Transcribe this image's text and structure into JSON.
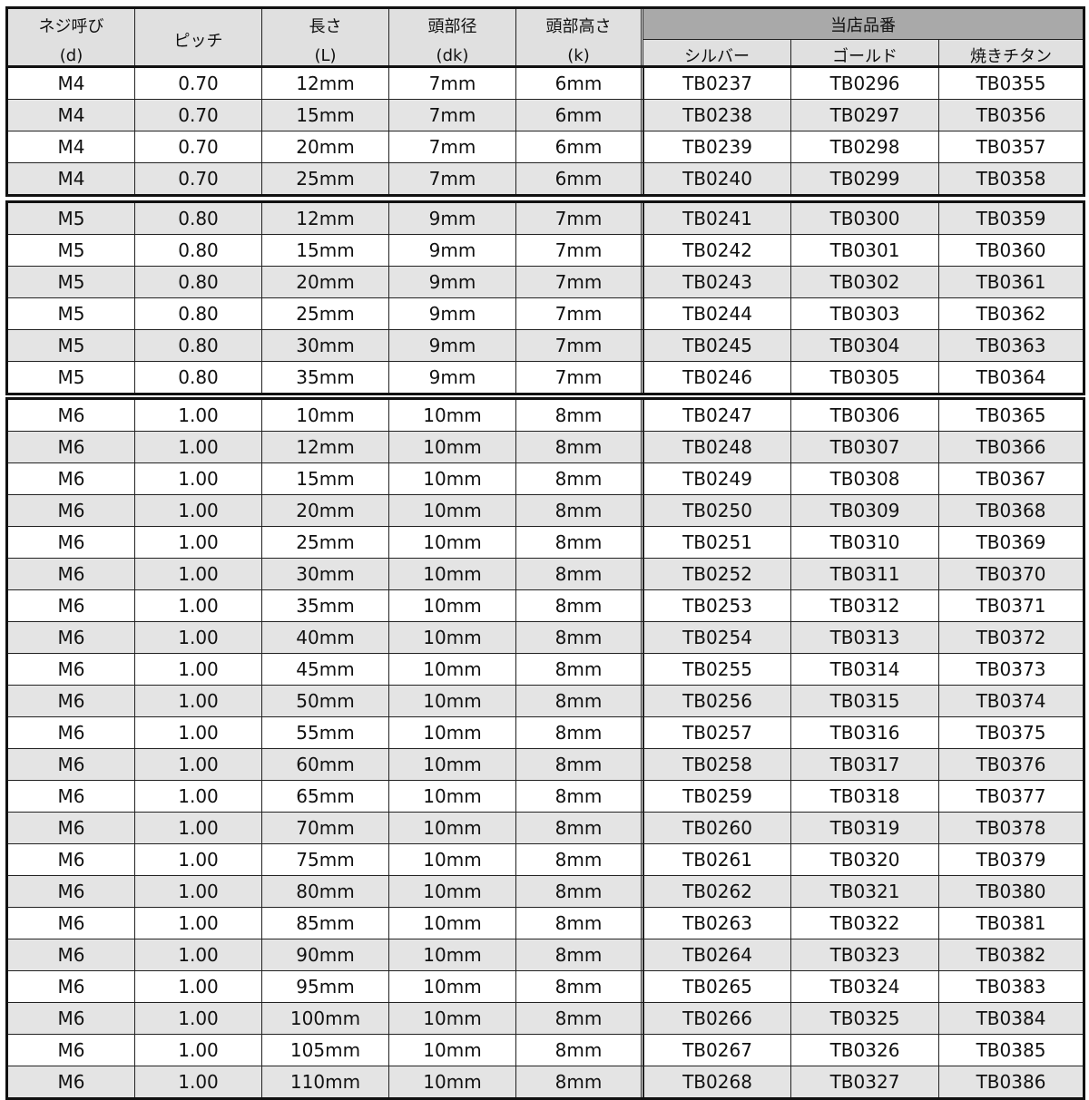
{
  "header": {
    "cols": [
      [
        "ネジ呼び",
        "(d)"
      ],
      [
        "ピッチ",
        ""
      ],
      [
        "長さ",
        "(L)"
      ],
      [
        "頭部径",
        "(dk)"
      ],
      [
        "頭部高さ",
        "(k)"
      ]
    ],
    "group": "当店品番",
    "sub": [
      "シルバー",
      "ゴールド",
      "焼きチタン"
    ]
  },
  "groups": [
    {
      "start_shaded": false,
      "rows": [
        [
          "M4",
          "0.70",
          "12mm",
          "7mm",
          "6mm",
          "TB0237",
          "TB0296",
          "TB0355"
        ],
        [
          "M4",
          "0.70",
          "15mm",
          "7mm",
          "6mm",
          "TB0238",
          "TB0297",
          "TB0356"
        ],
        [
          "M4",
          "0.70",
          "20mm",
          "7mm",
          "6mm",
          "TB0239",
          "TB0298",
          "TB0357"
        ],
        [
          "M4",
          "0.70",
          "25mm",
          "7mm",
          "6mm",
          "TB0240",
          "TB0299",
          "TB0358"
        ]
      ]
    },
    {
      "start_shaded": true,
      "rows": [
        [
          "M5",
          "0.80",
          "12mm",
          "9mm",
          "7mm",
          "TB0241",
          "TB0300",
          "TB0359"
        ],
        [
          "M5",
          "0.80",
          "15mm",
          "9mm",
          "7mm",
          "TB0242",
          "TB0301",
          "TB0360"
        ],
        [
          "M5",
          "0.80",
          "20mm",
          "9mm",
          "7mm",
          "TB0243",
          "TB0302",
          "TB0361"
        ],
        [
          "M5",
          "0.80",
          "25mm",
          "9mm",
          "7mm",
          "TB0244",
          "TB0303",
          "TB0362"
        ],
        [
          "M5",
          "0.80",
          "30mm",
          "9mm",
          "7mm",
          "TB0245",
          "TB0304",
          "TB0363"
        ],
        [
          "M5",
          "0.80",
          "35mm",
          "9mm",
          "7mm",
          "TB0246",
          "TB0305",
          "TB0364"
        ]
      ]
    },
    {
      "start_shaded": false,
      "rows": [
        [
          "M6",
          "1.00",
          "10mm",
          "10mm",
          "8mm",
          "TB0247",
          "TB0306",
          "TB0365"
        ],
        [
          "M6",
          "1.00",
          "12mm",
          "10mm",
          "8mm",
          "TB0248",
          "TB0307",
          "TB0366"
        ],
        [
          "M6",
          "1.00",
          "15mm",
          "10mm",
          "8mm",
          "TB0249",
          "TB0308",
          "TB0367"
        ],
        [
          "M6",
          "1.00",
          "20mm",
          "10mm",
          "8mm",
          "TB0250",
          "TB0309",
          "TB0368"
        ],
        [
          "M6",
          "1.00",
          "25mm",
          "10mm",
          "8mm",
          "TB0251",
          "TB0310",
          "TB0369"
        ],
        [
          "M6",
          "1.00",
          "30mm",
          "10mm",
          "8mm",
          "TB0252",
          "TB0311",
          "TB0370"
        ],
        [
          "M6",
          "1.00",
          "35mm",
          "10mm",
          "8mm",
          "TB0253",
          "TB0312",
          "TB0371"
        ],
        [
          "M6",
          "1.00",
          "40mm",
          "10mm",
          "8mm",
          "TB0254",
          "TB0313",
          "TB0372"
        ],
        [
          "M6",
          "1.00",
          "45mm",
          "10mm",
          "8mm",
          "TB0255",
          "TB0314",
          "TB0373"
        ],
        [
          "M6",
          "1.00",
          "50mm",
          "10mm",
          "8mm",
          "TB0256",
          "TB0315",
          "TB0374"
        ],
        [
          "M6",
          "1.00",
          "55mm",
          "10mm",
          "8mm",
          "TB0257",
          "TB0316",
          "TB0375"
        ],
        [
          "M6",
          "1.00",
          "60mm",
          "10mm",
          "8mm",
          "TB0258",
          "TB0317",
          "TB0376"
        ],
        [
          "M6",
          "1.00",
          "65mm",
          "10mm",
          "8mm",
          "TB0259",
          "TB0318",
          "TB0377"
        ],
        [
          "M6",
          "1.00",
          "70mm",
          "10mm",
          "8mm",
          "TB0260",
          "TB0319",
          "TB0378"
        ],
        [
          "M6",
          "1.00",
          "75mm",
          "10mm",
          "8mm",
          "TB0261",
          "TB0320",
          "TB0379"
        ],
        [
          "M6",
          "1.00",
          "80mm",
          "10mm",
          "8mm",
          "TB0262",
          "TB0321",
          "TB0380"
        ],
        [
          "M6",
          "1.00",
          "85mm",
          "10mm",
          "8mm",
          "TB0263",
          "TB0322",
          "TB0381"
        ],
        [
          "M6",
          "1.00",
          "90mm",
          "10mm",
          "8mm",
          "TB0264",
          "TB0323",
          "TB0382"
        ],
        [
          "M6",
          "1.00",
          "95mm",
          "10mm",
          "8mm",
          "TB0265",
          "TB0324",
          "TB0383"
        ],
        [
          "M6",
          "1.00",
          "100mm",
          "10mm",
          "8mm",
          "TB0266",
          "TB0325",
          "TB0384"
        ],
        [
          "M6",
          "1.00",
          "105mm",
          "10mm",
          "8mm",
          "TB0267",
          "TB0326",
          "TB0385"
        ],
        [
          "M6",
          "1.00",
          "110mm",
          "10mm",
          "8mm",
          "TB0268",
          "TB0327",
          "TB0386"
        ]
      ]
    }
  ]
}
